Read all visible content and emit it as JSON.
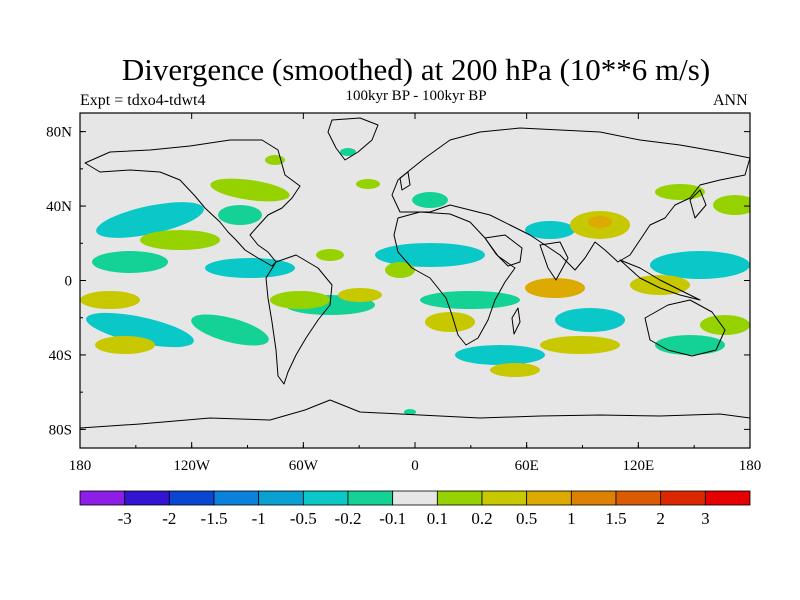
{
  "header": {
    "title": "Divergence (smoothed) at 200 hPa (10**6 m/s)",
    "subtitle": "100kyr BP - 100kyr BP",
    "experiment": "Expt = tdxo4-tdwt4",
    "season": "ANN"
  },
  "map": {
    "projection": "cylindrical-equidistant",
    "lon_range": [
      -180,
      180
    ],
    "lat_range": [
      -90,
      90
    ],
    "x_ticks": [
      {
        "value": -180,
        "label": "180"
      },
      {
        "value": -120,
        "label": "120W"
      },
      {
        "value": -60,
        "label": "60W"
      },
      {
        "value": 0,
        "label": "0"
      },
      {
        "value": 60,
        "label": "60E"
      },
      {
        "value": 120,
        "label": "120E"
      },
      {
        "value": 180,
        "label": "180"
      }
    ],
    "y_ticks": [
      {
        "value": 80,
        "label": "80N"
      },
      {
        "value": 40,
        "label": "40N"
      },
      {
        "value": 0,
        "label": "0"
      },
      {
        "value": -40,
        "label": "40S"
      },
      {
        "value": -80,
        "label": "80S"
      }
    ],
    "background_color": "#e6e6e6",
    "coastline_color": "#000000"
  },
  "colorbar": {
    "colors": [
      "#8c1ee6",
      "#3214d2",
      "#0a46d2",
      "#0a82dc",
      "#0aa0d2",
      "#0ac8c8",
      "#14d296",
      "#e6e6e6",
      "#96d200",
      "#c8c800",
      "#dcaa00",
      "#dc8200",
      "#dc5a00",
      "#dc2800",
      "#e60000"
    ],
    "labels": [
      "-3",
      "-2",
      "-1.5",
      "-1",
      "-0.5",
      "-0.2",
      "-0.1",
      "0.1",
      "0.2",
      "0.5",
      "1",
      "1.5",
      "2",
      "3"
    ]
  }
}
